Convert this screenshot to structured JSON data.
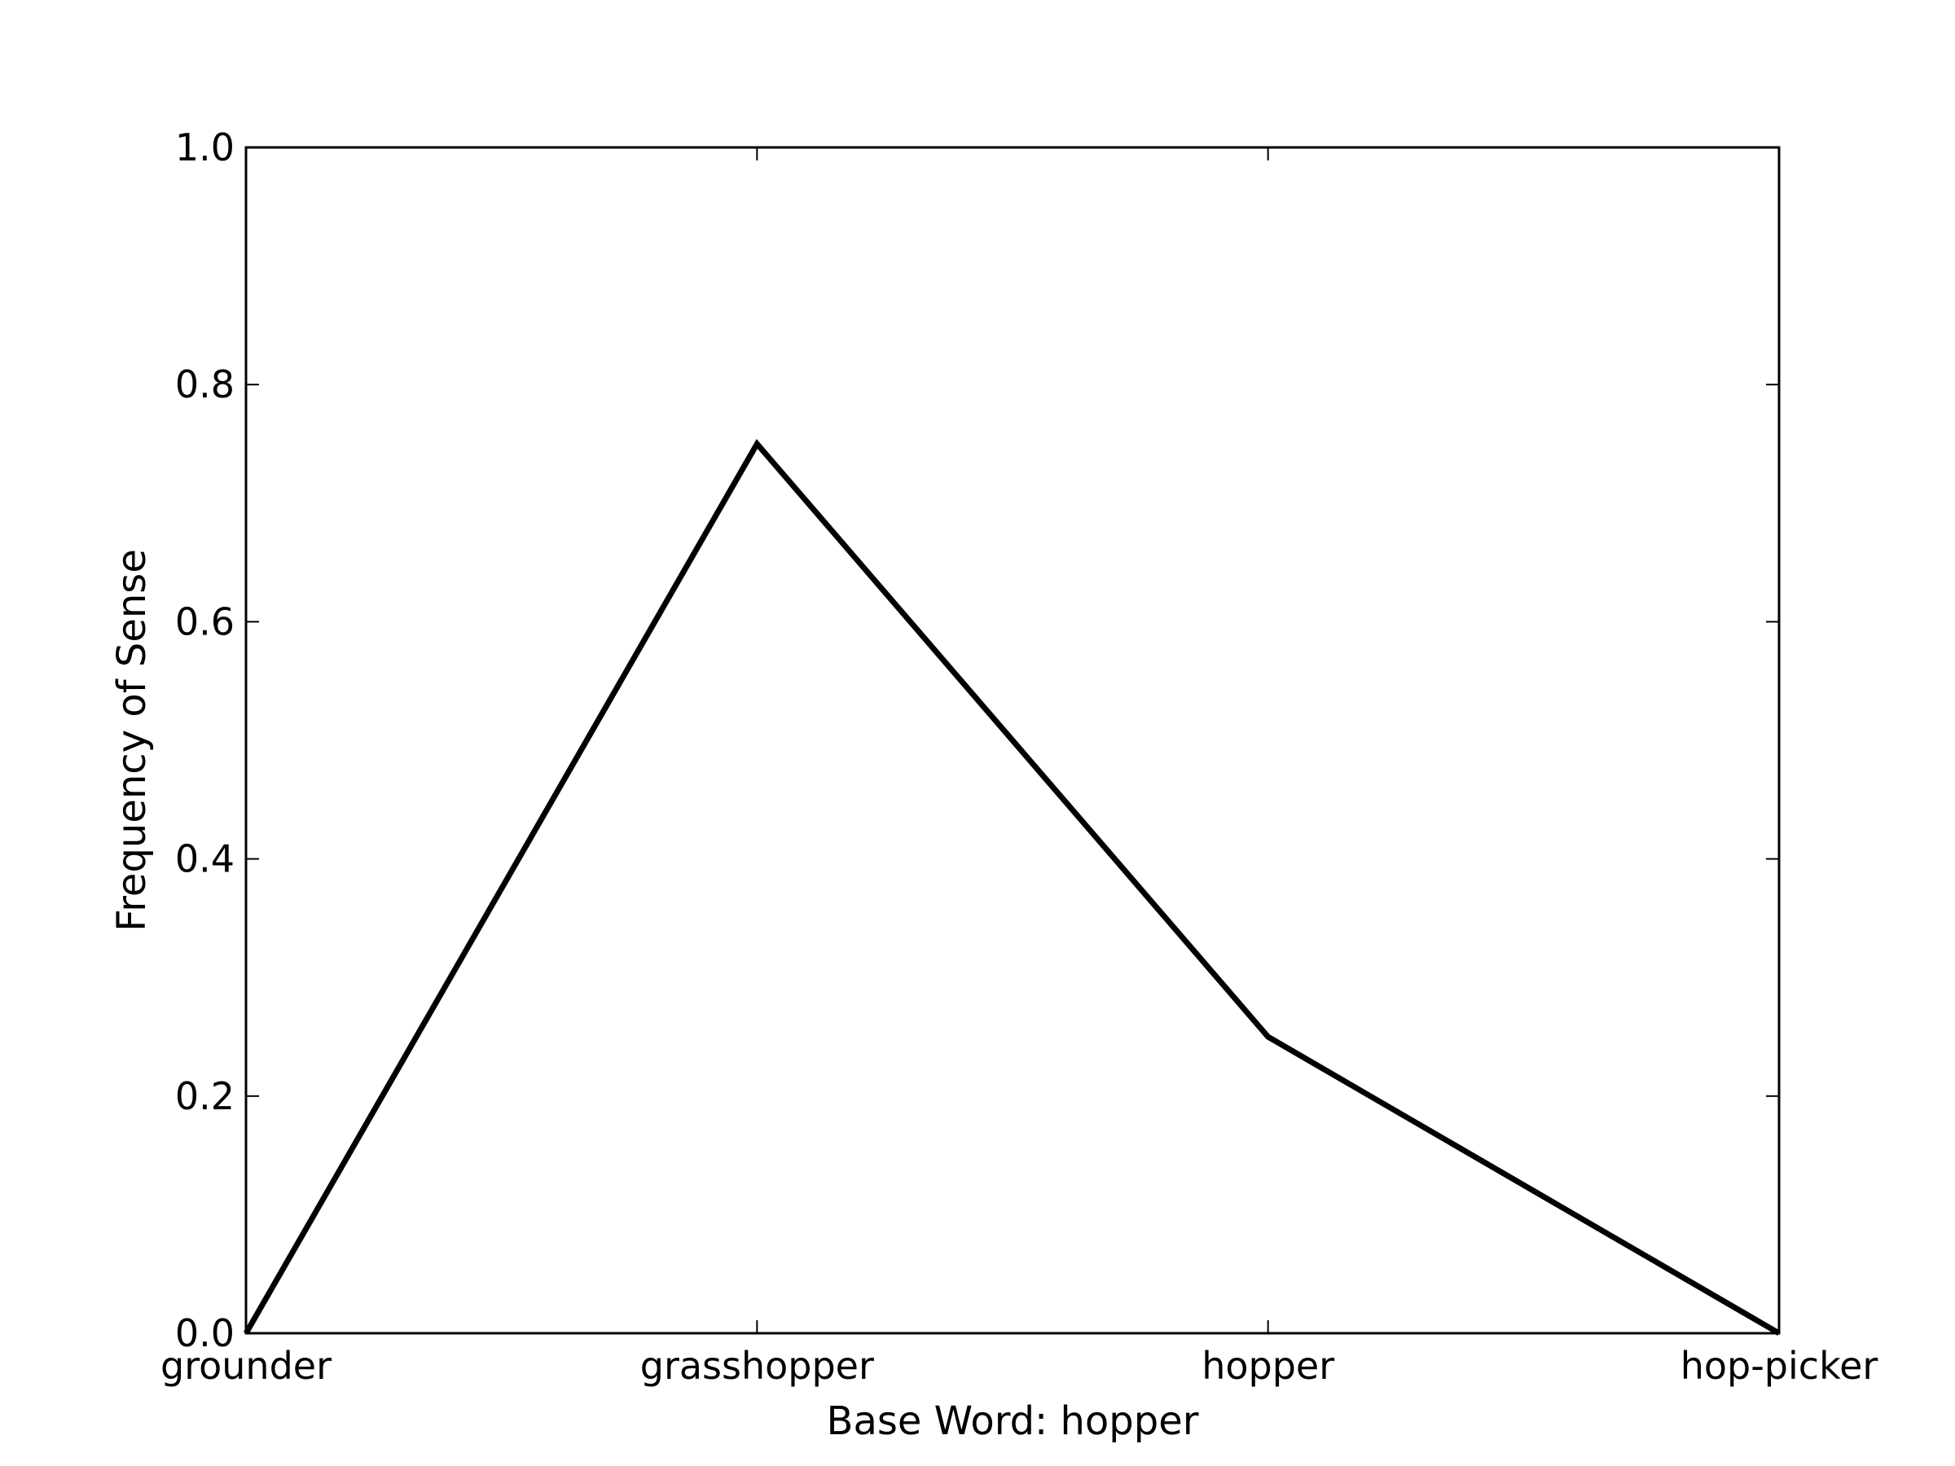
{
  "chart_data": {
    "type": "line",
    "categories": [
      "grounder",
      "grasshopper",
      "hopper",
      "hop-picker"
    ],
    "series": [
      {
        "values": [
          0.0,
          0.75,
          0.25,
          0.0
        ]
      }
    ],
    "title": "",
    "xlabel": "Base Word: hopper",
    "ylabel": "Frequency of Sense",
    "ylim": [
      0.0,
      1.0
    ],
    "yticks": [
      "0.0",
      "0.2",
      "0.4",
      "0.6",
      "0.8",
      "1.0"
    ],
    "grid": false,
    "legend": "none",
    "colors": {
      "line": "#000000",
      "axes": "#000000",
      "background": "#ffffff"
    }
  }
}
